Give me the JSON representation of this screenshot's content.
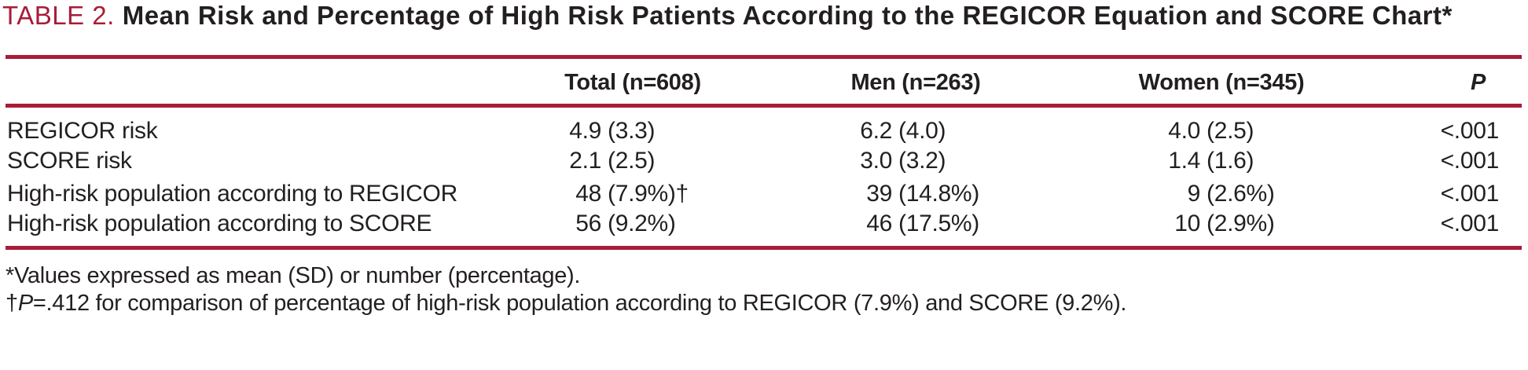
{
  "title": {
    "label": "TABLE 2.",
    "text": "Mean Risk and Percentage of High Risk Patients According to the REGICOR Equation and SCORE Chart*"
  },
  "colors": {
    "accent_rule_red": "#A81C38",
    "text_black": "#231F20"
  },
  "table": {
    "headers": {
      "rowlabel": "",
      "total": "Total (n=608)",
      "men": "Men (n=263)",
      "women": "Women (n=345)",
      "p": "P"
    },
    "rows": [
      {
        "label": "REGICOR risk",
        "total": {
          "num": "4.9",
          "paren": "(3.3)"
        },
        "men": {
          "num": "6.2",
          "paren": "(4.0)"
        },
        "women": {
          "num": "4.0",
          "paren": "(2.5)"
        },
        "p": "<.001"
      },
      {
        "label": "SCORE risk",
        "total": {
          "num": "2.1",
          "paren": "(2.5)"
        },
        "men": {
          "num": "3.0",
          "paren": "(3.2)"
        },
        "women": {
          "num": "1.4",
          "paren": "(1.6)"
        },
        "p": "<.001"
      },
      {
        "label": "High-risk population according to REGICOR",
        "total": {
          "num": "48",
          "paren": "(7.9%)†"
        },
        "men": {
          "num": "39",
          "paren": "(14.8%)"
        },
        "women": {
          "num": "9",
          "paren": "(2.6%)"
        },
        "p": "<.001"
      },
      {
        "label": "High-risk population according to SCORE",
        "total": {
          "num": "56",
          "paren": "(9.2%)"
        },
        "men": {
          "num": "46",
          "paren": "(17.5%)"
        },
        "women": {
          "num": "10",
          "paren": "(2.9%)"
        },
        "p": "<.001"
      }
    ]
  },
  "footnotes": {
    "line1": "*Values expressed as mean (SD) or number (percentage).",
    "line2_prefix": "†",
    "line2_italic": "P",
    "line2_rest": "=.412 for comparison of percentage of high-risk population according to REGICOR (7.9%) and SCORE (9.2%)."
  }
}
